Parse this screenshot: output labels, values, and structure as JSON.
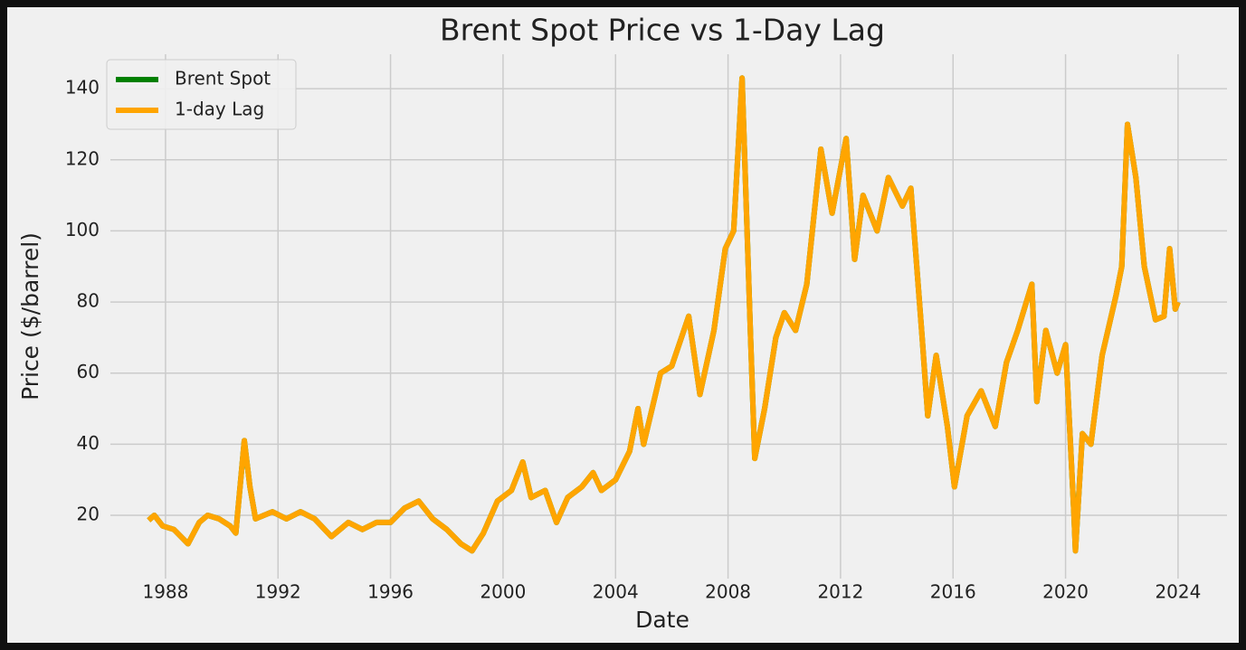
{
  "chart_data": {
    "type": "line",
    "title": "Brent Spot Price vs 1-Day Lag",
    "x_label": "Date",
    "y_label": "Price ($/barrel)",
    "x": [
      1987.4,
      1987.6,
      1987.9,
      1988.3,
      1988.8,
      1989.2,
      1989.5,
      1989.9,
      1990.3,
      1990.5,
      1990.8,
      1991.0,
      1991.2,
      1991.8,
      1992.3,
      1992.8,
      1993.3,
      1993.9,
      1994.5,
      1995.0,
      1995.5,
      1996.0,
      1996.5,
      1997.0,
      1997.5,
      1998.0,
      1998.5,
      1998.9,
      1999.3,
      1999.8,
      2000.3,
      2000.7,
      2001.0,
      2001.5,
      2001.9,
      2002.3,
      2002.8,
      2003.2,
      2003.5,
      2004.0,
      2004.5,
      2004.8,
      2005.0,
      2005.6,
      2006.0,
      2006.6,
      2007.0,
      2007.5,
      2007.9,
      2008.2,
      2008.5,
      2008.8,
      2008.95,
      2009.3,
      2009.7,
      2010.0,
      2010.4,
      2010.8,
      2011.3,
      2011.7,
      2012.2,
      2012.5,
      2012.8,
      2013.3,
      2013.7,
      2014.2,
      2014.5,
      2014.9,
      2015.1,
      2015.4,
      2015.8,
      2016.05,
      2016.5,
      2017.0,
      2017.5,
      2017.9,
      2018.3,
      2018.8,
      2018.98,
      2019.3,
      2019.7,
      2020.0,
      2020.3,
      2020.35,
      2020.6,
      2020.9,
      2021.3,
      2021.8,
      2022.0,
      2022.2,
      2022.5,
      2022.8,
      2023.2,
      2023.5,
      2023.7,
      2023.9,
      2024.0
    ],
    "series": [
      {
        "name": "Brent Spot",
        "color": "#008000",
        "values": [
          18.6,
          20,
          17,
          16,
          12,
          18,
          20,
          19,
          17,
          15,
          41,
          28,
          19,
          21,
          19,
          21,
          19,
          14,
          18,
          16,
          18,
          18,
          22,
          24,
          19,
          16,
          12,
          10,
          15,
          24,
          27,
          35,
          25,
          27,
          18,
          25,
          28,
          32,
          27,
          30,
          38,
          50,
          40,
          60,
          62,
          76,
          54,
          72,
          95,
          100,
          143,
          70,
          36,
          50,
          70,
          77,
          72,
          85,
          123,
          105,
          126,
          92,
          110,
          100,
          115,
          107,
          112,
          70,
          48,
          65,
          45,
          28,
          48,
          55,
          45,
          63,
          72,
          85,
          52,
          72,
          60,
          68,
          20,
          10,
          43,
          40,
          65,
          82,
          90,
          130,
          115,
          90,
          75,
          76,
          95,
          78,
          80
        ]
      },
      {
        "name": "1-day Lag",
        "color": "#ffa500",
        "values": [
          18.6,
          20,
          17,
          16,
          12,
          18,
          20,
          19,
          17,
          15,
          41,
          28,
          19,
          21,
          19,
          21,
          19,
          14,
          18,
          16,
          18,
          18,
          22,
          24,
          19,
          16,
          12,
          10,
          15,
          24,
          27,
          35,
          25,
          27,
          18,
          25,
          28,
          32,
          27,
          30,
          38,
          50,
          40,
          60,
          62,
          76,
          54,
          72,
          95,
          100,
          143,
          70,
          36,
          50,
          70,
          77,
          72,
          85,
          123,
          105,
          126,
          92,
          110,
          100,
          115,
          107,
          112,
          70,
          48,
          65,
          45,
          28,
          48,
          55,
          45,
          63,
          72,
          85,
          52,
          72,
          60,
          68,
          20,
          10,
          43,
          40,
          65,
          82,
          90,
          130,
          115,
          90,
          75,
          76,
          95,
          78,
          80
        ]
      }
    ],
    "xlim": [
      1986.04,
      2025.74
    ],
    "xticks": [
      1988,
      1992,
      1996,
      2000,
      2004,
      2008,
      2012,
      2016,
      2020,
      2024
    ],
    "ylim": [
      2.2,
      149.7
    ],
    "yticks": [
      20,
      40,
      60,
      80,
      100,
      120,
      140
    ],
    "grid": true,
    "legend": "upper left"
  }
}
